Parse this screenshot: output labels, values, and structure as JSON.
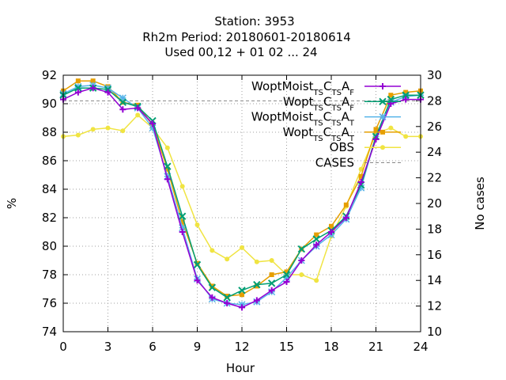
{
  "chart_data": {
    "type": "line",
    "title_lines": [
      "Station:     3953",
      "Rh2m   Period: 20180601-20180614",
      "Used  00,12  + 01 02 ... 24"
    ],
    "xlabel": "Hour",
    "ylabel": "%",
    "y2label": "No cases",
    "xlim": [
      0,
      24
    ],
    "ylim": [
      74,
      92
    ],
    "y2lim": [
      10,
      30
    ],
    "xticks": [
      0,
      3,
      6,
      9,
      12,
      15,
      18,
      21,
      24
    ],
    "yticks": [
      74,
      76,
      78,
      80,
      82,
      84,
      86,
      88,
      90,
      92
    ],
    "y2ticks": [
      10,
      12,
      14,
      16,
      18,
      20,
      22,
      24,
      26,
      28,
      30
    ],
    "grid": true,
    "legend_position": "top-right",
    "x": [
      0,
      1,
      2,
      3,
      4,
      5,
      6,
      7,
      8,
      9,
      10,
      11,
      12,
      13,
      14,
      15,
      16,
      17,
      18,
      19,
      20,
      21,
      22,
      23,
      24
    ],
    "series": [
      {
        "name": "WoptMoist",
        "sub1": "TS",
        "mid": "C",
        "sub2": "TS",
        "tail": "A",
        "sub3": "F",
        "color": "#9400d3",
        "marker": "plus",
        "values": [
          90.3,
          90.8,
          91.1,
          90.8,
          89.6,
          89.7,
          88.6,
          84.7,
          81.0,
          77.6,
          76.4,
          76.0,
          75.7,
          76.2,
          76.9,
          77.5,
          79.0,
          80.1,
          81.0,
          82.0,
          84.5,
          87.5,
          90.0,
          90.3,
          90.3
        ]
      },
      {
        "name": "Wopt",
        "sub1": "TS",
        "mid": "C",
        "sub2": "TS",
        "tail": "A",
        "sub3": "F",
        "color": "#009e73",
        "marker": "cross",
        "values": [
          90.6,
          91.1,
          91.1,
          91.0,
          90.1,
          89.8,
          88.8,
          85.6,
          82.1,
          78.7,
          77.1,
          76.4,
          76.9,
          77.3,
          77.4,
          78.0,
          79.8,
          80.5,
          81.1,
          82.1,
          84.3,
          87.7,
          90.3,
          90.6,
          90.6
        ]
      },
      {
        "name": "WoptMoist",
        "sub1": "TS",
        "mid": "C",
        "sub2": "TS",
        "tail": "A",
        "sub3": "T",
        "color": "#56b4e9",
        "marker": "star",
        "values": [
          90.7,
          91.2,
          91.3,
          91.1,
          90.4,
          89.7,
          88.3,
          84.9,
          81.3,
          77.7,
          76.3,
          76.0,
          75.9,
          76.1,
          76.8,
          77.8,
          79.0,
          80.0,
          80.8,
          81.9,
          84.1,
          87.7,
          90.1,
          90.5,
          90.6
        ]
      },
      {
        "name": "Wopt",
        "sub1": "TS",
        "mid": "C",
        "sub2": "TS",
        "tail": "A",
        "sub3": "T",
        "color": "#e69f00",
        "marker": "square",
        "values": [
          90.9,
          91.6,
          91.6,
          91.2,
          90.1,
          89.9,
          88.5,
          85.4,
          81.7,
          78.8,
          77.2,
          76.5,
          76.6,
          77.2,
          78.0,
          78.2,
          79.8,
          80.8,
          81.4,
          82.9,
          84.9,
          88.2,
          90.6,
          90.8,
          90.9
        ]
      },
      {
        "name": "OBS",
        "color": "#f0e442",
        "marker": "circle",
        "values": [
          87.7,
          87.8,
          88.2,
          88.3,
          88.1,
          89.2,
          88.3,
          86.9,
          84.2,
          81.5,
          79.7,
          79.1,
          79.9,
          78.9,
          79.0,
          78.0,
          78.0,
          77.6,
          80.7,
          82.8,
          85.4,
          87.9,
          88.3,
          87.7,
          87.7
        ]
      },
      {
        "name": "CASES",
        "axis": "y2",
        "color": "#888888",
        "dashed": true,
        "values": [
          28,
          28,
          28,
          28,
          28,
          28,
          28,
          28,
          28,
          28,
          28,
          28,
          28,
          28,
          28,
          28,
          28,
          28,
          28,
          28,
          28,
          28,
          28,
          28,
          28
        ]
      }
    ]
  }
}
